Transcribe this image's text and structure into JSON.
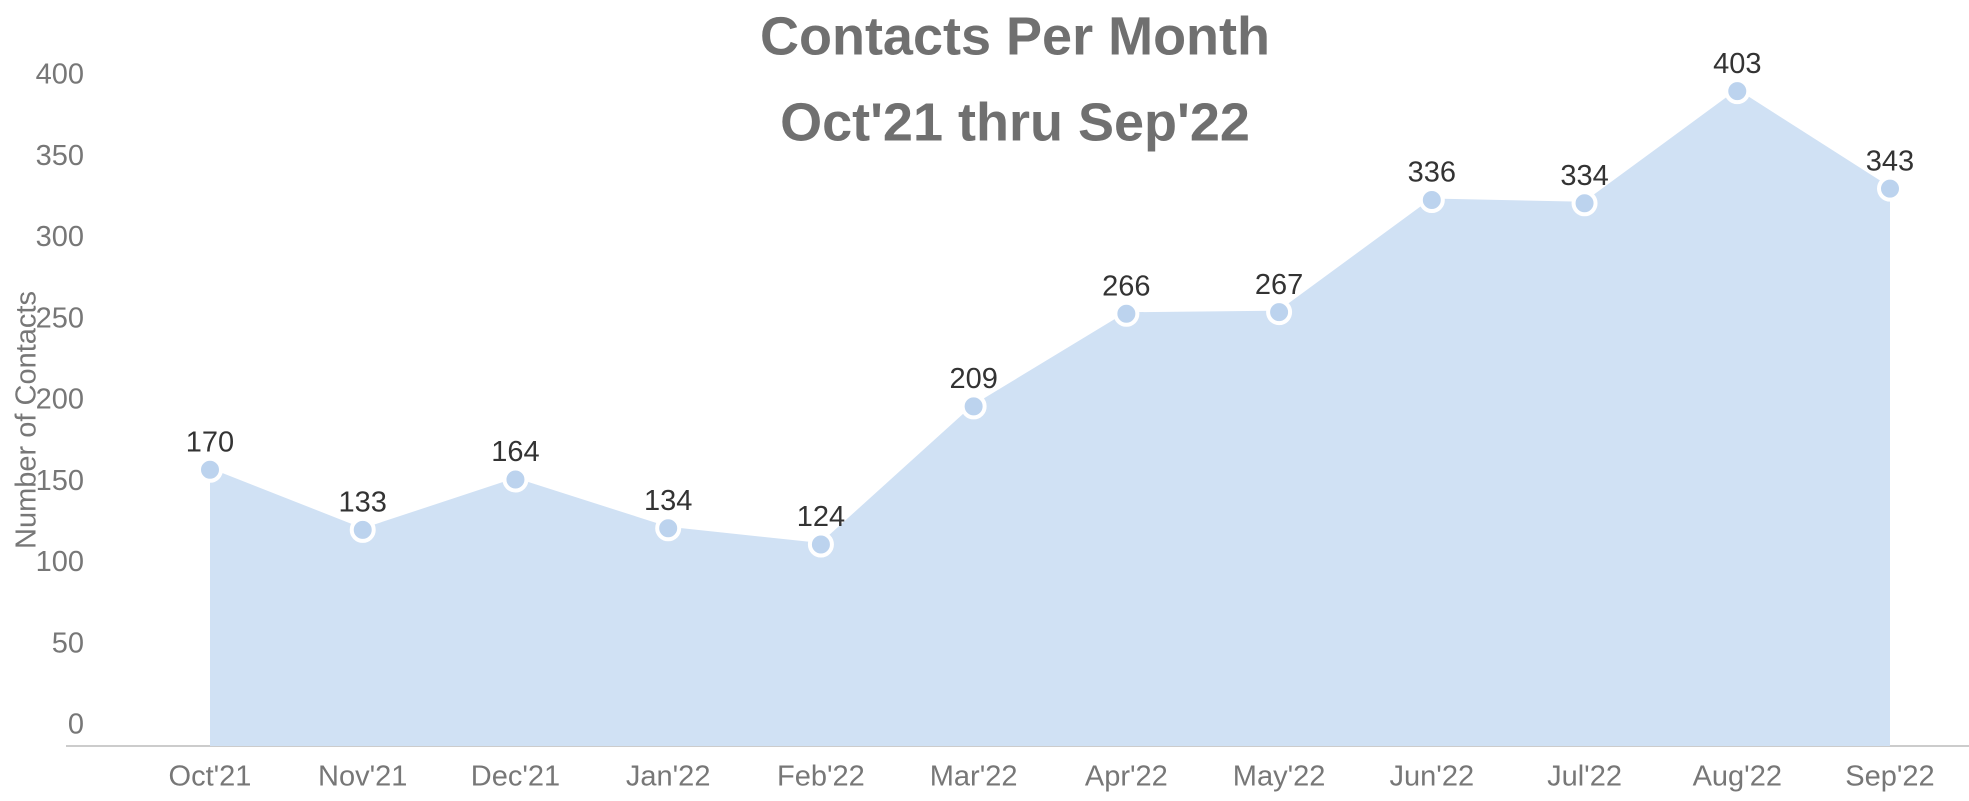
{
  "chart_data": {
    "type": "area",
    "title": "Contacts Per Month",
    "subtitle": "Oct'21 thru Sep'22",
    "y_label": "Number of Contacts",
    "categories": [
      "Oct'21",
      "Nov'21",
      "Dec'21",
      "Jan'22",
      "Feb'22",
      "Mar'22",
      "Apr'22",
      "May'22",
      "Jun'22",
      "Jul'22",
      "Aug'22",
      "Sep'22"
    ],
    "values": [
      170,
      133,
      164,
      134,
      124,
      209,
      266,
      267,
      336,
      334,
      403,
      343
    ],
    "color": "#d0e1f4",
    "marker_color": "#bcd3ee",
    "ylim": [
      0,
      400
    ],
    "yticks": [
      0,
      50,
      100,
      150,
      200,
      250,
      300,
      350,
      400
    ],
    "grid": false
  }
}
